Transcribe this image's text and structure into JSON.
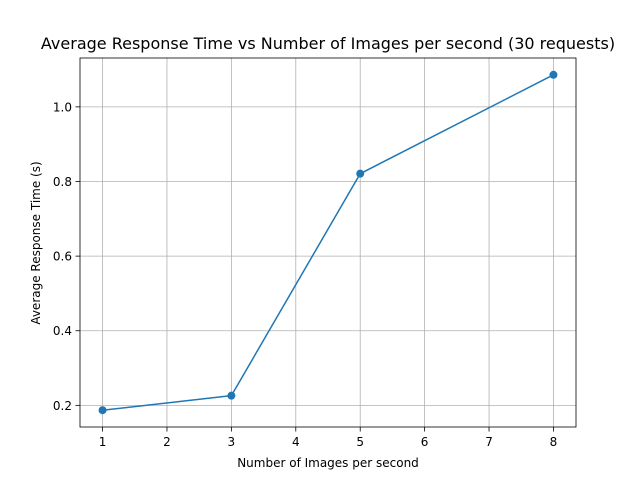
{
  "chart_data": {
    "type": "line",
    "title": "Average Response Time vs Number of Images per second (30 requests)",
    "xlabel": "Number of Images per second",
    "ylabel": "Average Response Time (s)",
    "x": [
      1,
      3,
      5,
      8
    ],
    "series": [
      {
        "values": [
          0.187,
          0.226,
          0.821,
          1.086
        ]
      }
    ],
    "xlim": [
      0.65,
      8.35
    ],
    "ylim": [
      0.142,
      1.131
    ],
    "xticks": [
      1,
      2,
      3,
      4,
      5,
      6,
      7,
      8
    ],
    "yticks": [
      0.2,
      0.4,
      0.6,
      0.8,
      1.0
    ],
    "ytick_labels": [
      "0.2",
      "0.4",
      "0.6",
      "0.8",
      "1.0"
    ],
    "grid": true,
    "marker": "circle",
    "colors": {
      "line": "#1f77b4",
      "grid": "#b0b0b0",
      "axes": "#000000"
    }
  }
}
